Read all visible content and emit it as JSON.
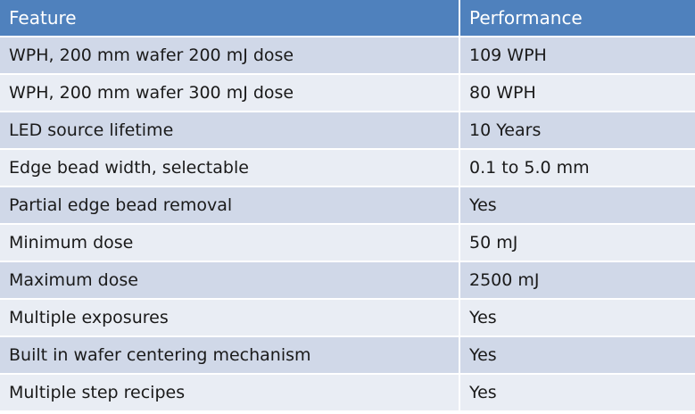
{
  "table": {
    "headers": [
      "Feature",
      "Performance"
    ],
    "rows": [
      [
        "WPH, 200 mm wafer 200 mJ dose",
        "109 WPH"
      ],
      [
        "WPH, 200 mm wafer 300 mJ dose",
        "80 WPH"
      ],
      [
        "LED source lifetime",
        "10 Years"
      ],
      [
        "Edge bead width, selectable",
        "0.1 to 5.0 mm"
      ],
      [
        "Partial edge bead removal",
        "Yes"
      ],
      [
        "Minimum dose",
        "50 mJ"
      ],
      [
        "Maximum dose",
        "2500 mJ"
      ],
      [
        "Multiple exposures",
        "Yes"
      ],
      [
        "Built in wafer centering mechanism",
        "Yes"
      ],
      [
        "Multiple step recipes",
        "Yes"
      ]
    ]
  },
  "colors": {
    "header_bg": "#4f81bd",
    "row_odd_bg": "#d0d8e8",
    "row_even_bg": "#e9edf4"
  }
}
